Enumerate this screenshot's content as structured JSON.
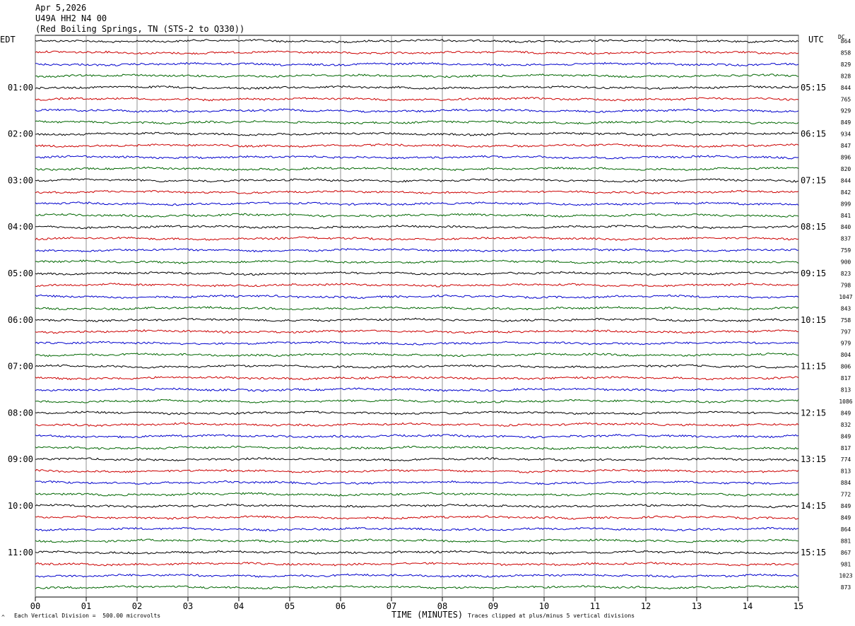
{
  "header": {
    "date": "Apr 5,2026",
    "station": "U49A HH2 N4 00",
    "location": "(Red Boiling Springs, TN (STS-2 to Q330))"
  },
  "labels": {
    "left_tz": "EDT",
    "right_tz": "UTC",
    "dc": "DC"
  },
  "footer": {
    "xlabel": "TIME (MINUTES)",
    "scale": "Each Vertical Division =  500.00 microvolts",
    "clip": "Traces clipped at plus/minus 5 vertical divisions"
  },
  "colors": {
    "trace_cycle": [
      "#000000",
      "#cc0000",
      "#0000cc",
      "#006600"
    ],
    "grid": "#777777"
  },
  "chart_data": {
    "type": "line",
    "title": "U49A HH2 N4 00",
    "xlabel": "TIME (MINUTES)",
    "ylabel": "",
    "xlim": [
      0,
      15
    ],
    "x_ticks": [
      "00",
      "01",
      "02",
      "03",
      "04",
      "05",
      "06",
      "07",
      "08",
      "09",
      "10",
      "11",
      "12",
      "13",
      "14",
      "15"
    ],
    "left_time_labels": [
      "01:00",
      "02:00",
      "03:00",
      "04:00",
      "05:00",
      "06:00",
      "07:00",
      "08:00",
      "09:00",
      "10:00",
      "11:00"
    ],
    "right_time_labels": [
      "05:15",
      "06:15",
      "07:15",
      "08:15",
      "09:15",
      "10:15",
      "11:15",
      "12:15",
      "13:15",
      "14:15",
      "15:15"
    ],
    "trace_dc_offsets": [
      864,
      858,
      829,
      828,
      844,
      765,
      929,
      849,
      934,
      847,
      896,
      820,
      844,
      842,
      899,
      841,
      840,
      837,
      759,
      900,
      823,
      798,
      1047,
      843,
      758,
      797,
      979,
      804,
      806,
      817,
      813,
      1086,
      849,
      832,
      849,
      817,
      774,
      813,
      884,
      772,
      849,
      849,
      864,
      881,
      867,
      981,
      1023,
      873
    ],
    "trace_minutes_per_line": 15,
    "grid": true
  }
}
